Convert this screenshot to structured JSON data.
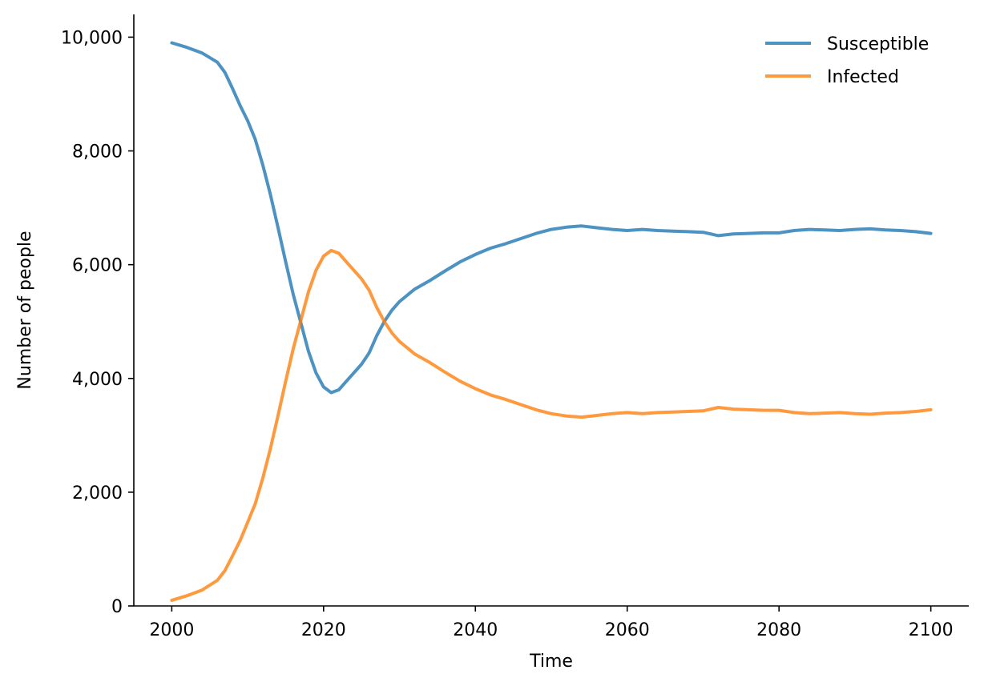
{
  "chart_data": {
    "type": "line",
    "title": "",
    "xlabel": "Time",
    "ylabel": "Number of people",
    "xlim": [
      1995,
      2105
    ],
    "ylim": [
      0,
      10400
    ],
    "xticks": [
      2000,
      2020,
      2040,
      2060,
      2080,
      2100
    ],
    "xtick_labels": [
      "2000",
      "2020",
      "2040",
      "2060",
      "2080",
      "2100"
    ],
    "yticks": [
      0,
      2000,
      4000,
      6000,
      8000,
      10000
    ],
    "ytick_labels": [
      "0",
      "2,000",
      "4,000",
      "6,000",
      "8,000",
      "10,000"
    ],
    "grid": false,
    "legend_position": "top-right",
    "series": [
      {
        "name": "Susceptible",
        "color": "#1f77b4",
        "x": [
          2000,
          2002,
          2004,
          2006,
          2007,
          2008,
          2009,
          2010,
          2011,
          2012,
          2013,
          2014,
          2015,
          2016,
          2017,
          2018,
          2019,
          2020,
          2021,
          2022,
          2023,
          2024,
          2025,
          2026,
          2027,
          2028,
          2029,
          2030,
          2032,
          2034,
          2036,
          2038,
          2040,
          2042,
          2044,
          2046,
          2048,
          2050,
          2052,
          2054,
          2056,
          2058,
          2060,
          2062,
          2064,
          2066,
          2068,
          2070,
          2072,
          2074,
          2076,
          2078,
          2080,
          2082,
          2084,
          2086,
          2088,
          2090,
          2092,
          2094,
          2096,
          2098,
          2100
        ],
        "y": [
          9900,
          9820,
          9720,
          9560,
          9380,
          9100,
          8800,
          8530,
          8200,
          7750,
          7230,
          6650,
          6050,
          5480,
          4980,
          4480,
          4100,
          3850,
          3750,
          3800,
          3950,
          4100,
          4250,
          4450,
          4750,
          5000,
          5200,
          5350,
          5570,
          5720,
          5890,
          6050,
          6180,
          6290,
          6370,
          6460,
          6550,
          6620,
          6660,
          6680,
          6650,
          6620,
          6600,
          6620,
          6600,
          6590,
          6580,
          6570,
          6510,
          6540,
          6550,
          6560,
          6560,
          6600,
          6620,
          6610,
          6600,
          6620,
          6630,
          6610,
          6600,
          6580,
          6550
        ]
      },
      {
        "name": "Infected",
        "color": "#ff7f0e",
        "x": [
          2000,
          2002,
          2004,
          2006,
          2007,
          2008,
          2009,
          2010,
          2011,
          2012,
          2013,
          2014,
          2015,
          2016,
          2017,
          2018,
          2019,
          2020,
          2021,
          2022,
          2023,
          2024,
          2025,
          2026,
          2027,
          2028,
          2029,
          2030,
          2032,
          2034,
          2036,
          2038,
          2040,
          2042,
          2044,
          2046,
          2048,
          2050,
          2052,
          2054,
          2056,
          2058,
          2060,
          2062,
          2064,
          2066,
          2068,
          2070,
          2072,
          2074,
          2076,
          2078,
          2080,
          2082,
          2084,
          2086,
          2088,
          2090,
          2092,
          2094,
          2096,
          2098,
          2100
        ],
        "y": [
          100,
          180,
          280,
          450,
          620,
          880,
          1150,
          1470,
          1800,
          2250,
          2770,
          3350,
          3950,
          4520,
          5020,
          5520,
          5900,
          6150,
          6250,
          6200,
          6050,
          5900,
          5750,
          5550,
          5250,
          5000,
          4800,
          4650,
          4430,
          4280,
          4110,
          3950,
          3820,
          3710,
          3630,
          3540,
          3450,
          3380,
          3340,
          3320,
          3350,
          3380,
          3400,
          3380,
          3400,
          3410,
          3420,
          3430,
          3490,
          3460,
          3450,
          3440,
          3440,
          3400,
          3380,
          3390,
          3400,
          3380,
          3370,
          3390,
          3400,
          3420,
          3450
        ]
      }
    ]
  }
}
